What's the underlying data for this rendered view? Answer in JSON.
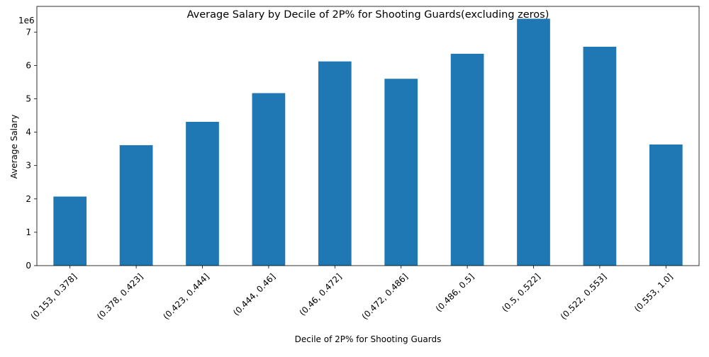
{
  "chart_data": {
    "type": "bar",
    "title": "Average Salary by Decile of 2P% for Shooting Guards(excluding zeros)",
    "xlabel": "Decile of 2P% for Shooting Guards",
    "ylabel": "Average Salary",
    "y_offset_label": "1e6",
    "categories": [
      "(0.153, 0.378]",
      "(0.378, 0.423]",
      "(0.423, 0.444]",
      "(0.444, 0.46]",
      "(0.46, 0.472]",
      "(0.472, 0.486]",
      "(0.486, 0.5]",
      "(0.5, 0.522]",
      "(0.522, 0.553]",
      "(0.553, 1.0]"
    ],
    "values": [
      2070000,
      3610000,
      4310000,
      5170000,
      6120000,
      5600000,
      6350000,
      7400000,
      6560000,
      3630000
    ],
    "ylim": [
      0,
      7770000
    ],
    "yticks": [
      0,
      1,
      2,
      3,
      4,
      5,
      6,
      7
    ],
    "ytick_scale": 1000000,
    "bar_color": "#1f77b4",
    "grid": false,
    "legend": "none"
  }
}
